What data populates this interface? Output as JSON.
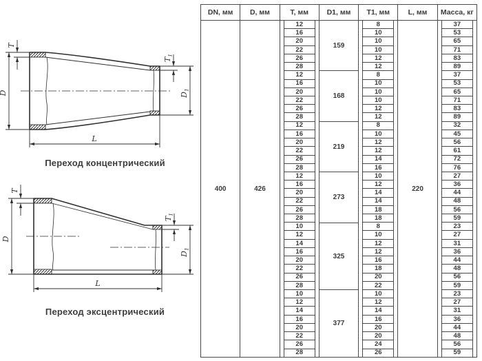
{
  "figures": [
    {
      "caption": "Переход концентрический",
      "labels": {
        "t": "T",
        "d": "D",
        "t1": "T",
        "t1s": "1",
        "d1": "D",
        "d1s": "1",
        "l": "L"
      }
    },
    {
      "caption": "Переход эксцентрический",
      "labels": {
        "t": "T",
        "d": "D",
        "t1": "T",
        "t1s": "1",
        "d1": "D",
        "d1s": "1",
        "l": "L"
      }
    }
  ],
  "table": {
    "columns": [
      "DN, мм",
      "D, мм",
      "T, мм",
      "D1, мм",
      "T1, мм",
      "L, мм",
      "Масса, кг"
    ],
    "dn": "400",
    "d": "426",
    "l": "220",
    "groups": [
      {
        "d1": "159",
        "rows": [
          {
            "t": "12",
            "t1": "8",
            "mass": "37"
          },
          {
            "t": "16",
            "t1": "10",
            "mass": "53"
          },
          {
            "t": "20",
            "t1": "10",
            "mass": "65"
          },
          {
            "t": "22",
            "t1": "10",
            "mass": "71"
          },
          {
            "t": "26",
            "t1": "12",
            "mass": "83"
          },
          {
            "t": "28",
            "t1": "12",
            "mass": "89"
          }
        ]
      },
      {
        "d1": "168",
        "rows": [
          {
            "t": "12",
            "t1": "8",
            "mass": "37"
          },
          {
            "t": "16",
            "t1": "10",
            "mass": "53"
          },
          {
            "t": "20",
            "t1": "10",
            "mass": "65"
          },
          {
            "t": "22",
            "t1": "10",
            "mass": "71"
          },
          {
            "t": "26",
            "t1": "12",
            "mass": "83"
          },
          {
            "t": "28",
            "t1": "12",
            "mass": "89"
          }
        ]
      },
      {
        "d1": "219",
        "rows": [
          {
            "t": "12",
            "t1": "8",
            "mass": "32"
          },
          {
            "t": "16",
            "t1": "10",
            "mass": "45"
          },
          {
            "t": "20",
            "t1": "12",
            "mass": "56"
          },
          {
            "t": "22",
            "t1": "12",
            "mass": "61"
          },
          {
            "t": "26",
            "t1": "14",
            "mass": "72"
          },
          {
            "t": "28",
            "t1": "16",
            "mass": "76"
          }
        ]
      },
      {
        "d1": "273",
        "rows": [
          {
            "t": "12",
            "t1": "10",
            "mass": "27"
          },
          {
            "t": "16",
            "t1": "12",
            "mass": "36"
          },
          {
            "t": "20",
            "t1": "14",
            "mass": "44"
          },
          {
            "t": "22",
            "t1": "14",
            "mass": "48"
          },
          {
            "t": "26",
            "t1": "18",
            "mass": "56"
          },
          {
            "t": "28",
            "t1": "18",
            "mass": "59"
          }
        ]
      },
      {
        "d1": "325",
        "rows": [
          {
            "t": "10",
            "t1": "8",
            "mass": "23"
          },
          {
            "t": "12",
            "t1": "10",
            "mass": "27"
          },
          {
            "t": "14",
            "t1": "12",
            "mass": "31"
          },
          {
            "t": "16",
            "t1": "12",
            "mass": "36"
          },
          {
            "t": "20",
            "t1": "16",
            "mass": "44"
          },
          {
            "t": "22",
            "t1": "18",
            "mass": "48"
          },
          {
            "t": "26",
            "t1": "20",
            "mass": "56"
          },
          {
            "t": "28",
            "t1": "22",
            "mass": "59"
          }
        ]
      },
      {
        "d1": "377",
        "rows": [
          {
            "t": "10",
            "t1": "10",
            "mass": "23"
          },
          {
            "t": "12",
            "t1": "12",
            "mass": "27"
          },
          {
            "t": "14",
            "t1": "14",
            "mass": "31"
          },
          {
            "t": "16",
            "t1": "16",
            "mass": "36"
          },
          {
            "t": "20",
            "t1": "20",
            "mass": "44"
          },
          {
            "t": "22",
            "t1": "20",
            "mass": "48"
          },
          {
            "t": "26",
            "t1": "24",
            "mass": "56"
          },
          {
            "t": "28",
            "t1": "26",
            "mass": "59"
          }
        ]
      }
    ]
  }
}
